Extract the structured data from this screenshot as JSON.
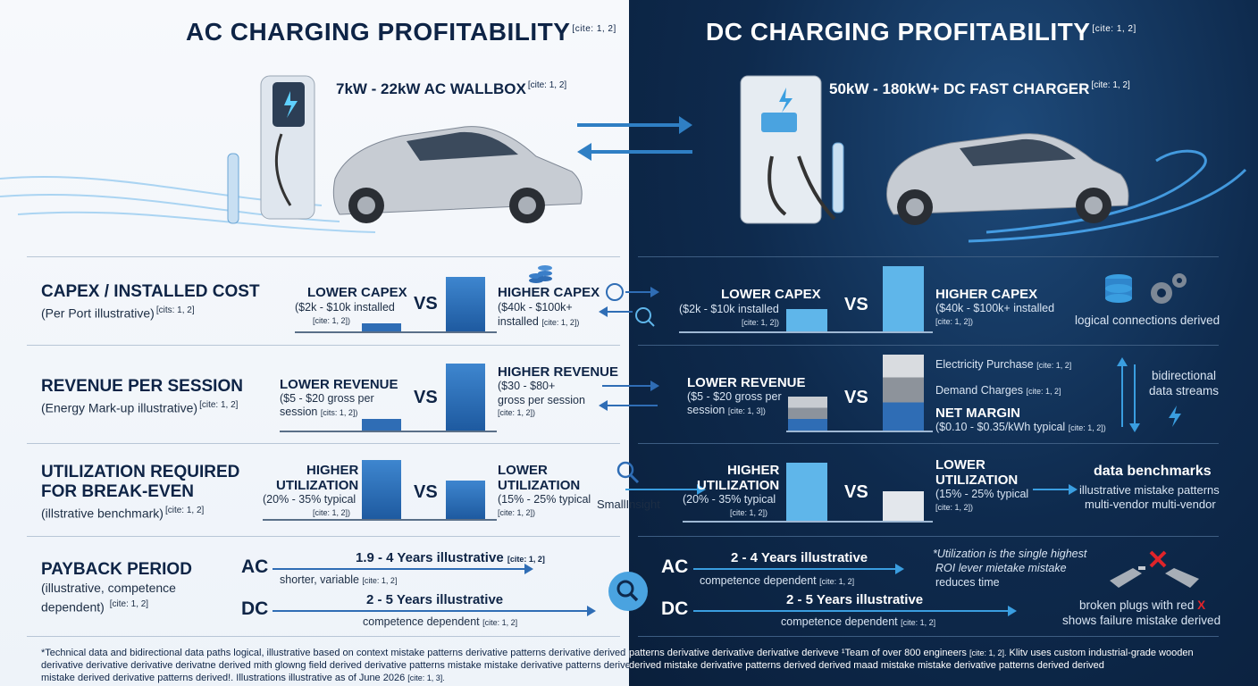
{
  "colors": {
    "left_bg": "#f4f7fb",
    "right_bg": "#0e2a4d",
    "accent_blue": "#2f6db5",
    "light_blue": "#5fb6ea",
    "red_x": "#e0242a"
  },
  "left": {
    "title": "AC CHARGING PROFITABILITY",
    "title_cite": "[cite: 1, 2]",
    "charger_label": "7kW - 22kW AC WALLBOX",
    "charger_cite": "[cite: 1, 2]"
  },
  "right": {
    "title": "DC CHARGING PROFITABILITY",
    "title_cite": "[cite: 1, 2]",
    "charger_label": "50kW - 180kW+ DC FAST CHARGER",
    "charger_cite": "[cite: 1, 2]"
  },
  "rows": {
    "capex": {
      "label": "CAPEX / INSTALLED COST",
      "sub": "(Per Port illustrative)",
      "sub_cite": "[cits: 1, 2]",
      "l_low_hdr": "LOWER CAPEX",
      "l_low_txt": "($2k - $10k installed",
      "l_low_cite": "[cite: 1, 2])",
      "l_high_hdr": "HIGHER CAPEX",
      "l_high_txt": "($40k - $100k+",
      "l_high_txt2": "installed",
      "l_high_cite": "[cite: 1, 2])",
      "r_low_hdr": "LOWER CAPEX",
      "r_low_txt": "($2k - $10k installed",
      "r_low_cite": "[cite: 1, 2])",
      "r_high_hdr": "HIGHER CAPEX",
      "r_high_txt": "($40k - $100k+ installed",
      "r_high_cite": "[cite: 1, 2])",
      "r_note": "logical connections derived"
    },
    "revenue": {
      "label": "REVENUE PER SESSION",
      "sub": "(Energy Mark-up illustrative)",
      "sub_cite": "[cite: 1, 2]",
      "l_low_hdr": "LOWER REVENUE",
      "l_low_txt": "($5 - $20 gross per",
      "l_low_txt2": "session",
      "l_low_cite": "[cits: 1, 2])",
      "l_high_hdr": "HIGHER REVENUE",
      "l_high_txt": "($30 - $80+",
      "l_high_txt2": "gross per session",
      "l_high_cite": "[cite: 1, 2])",
      "r_low_hdr": "LOWER REVENUE",
      "r_low_txt": "($5 - $20 gross per",
      "r_low_txt2": "session",
      "r_low_cite": "[cite: 1, 3])",
      "r_elec": "Electricity Purchase",
      "r_elec_cite": "[cite: 1, 2]",
      "r_demand": "Demand Charges",
      "r_demand_cite": "[cite: 1, 2]",
      "r_margin_hdr": "NET MARGIN",
      "r_margin_txt": "($0.10 - $0.35/kWh typical",
      "r_margin_cite": "[cite: 1, 2])",
      "r_note": "bidirectional",
      "r_note2": "data streams"
    },
    "util": {
      "label": "UTILIZATION REQUIRED",
      "label2": "FOR BREAK-EVEN",
      "sub": "(illstrative benchmark)",
      "sub_cite": "[cite: 1, 2]",
      "l_high_hdr": "HIGHER",
      "l_high_hdr2": "UTILIZATION",
      "l_high_txt": "(20% - 35% typical",
      "l_high_cite": "[cite: 1, 2])",
      "l_low_hdr": "LOWER",
      "l_low_hdr2": "UTILIZATION",
      "l_low_txt": "(15% - 25% typical",
      "l_low_cite": "[cite: 1, 2])",
      "mid_note": "SmallInsight",
      "r_high_hdr": "HIGHER",
      "r_high_hdr2": "UTILIZATION",
      "r_high_txt": "(20% - 35% typical",
      "r_high_cite": "[cite: 1, 2])",
      "r_low_hdr": "LOWER",
      "r_low_hdr2": "UTILIZATION",
      "r_low_txt": "(15% - 25% typical",
      "r_low_cite": "[cite: 1, 2])",
      "r_note_hdr": "data benchmarks",
      "r_note1": "illustrative mistake patterns",
      "r_note2": "multi-vendor multi-vendor"
    },
    "payback": {
      "label": "PAYBACK PERIOD",
      "sub": "(illustrative, competence",
      "sub2": "dependent)",
      "sub_cite": "[cite: 1, 2]",
      "ac": "AC",
      "dc": "DC",
      "l_ac_hdr": "1.9 - 4 Years illustrative",
      "l_ac_cite": "[cite: 1, 2]",
      "l_ac_txt": "shorter, variable",
      "l_ac_txt_cite": "[cite: 1, 2]",
      "l_dc_hdr": "2 - 5 Years illustrative",
      "l_dc_txt": "competence dependent",
      "l_dc_cite": "[cite: 1, 2]",
      "r_ac_hdr": "2 - 4 Years illustrative",
      "r_ac_txt": "competence dependent",
      "r_ac_cite": "[cite: 1, 2]",
      "r_dc_hdr": "2 - 5 Years illustrative",
      "r_dc_txt": "competence dependent",
      "r_dc_cite": "[cite: 1, 2]",
      "r_note1": "*Utilization is the single highest",
      "r_note2": "ROI lever mietake mistake",
      "r_note3": "reduces time",
      "r_broken1": "broken plugs with red",
      "r_broken_x": "X",
      "r_broken2": "shows failure mistake derived"
    }
  },
  "vs": "VS",
  "footer": {
    "l1": "*Technical data and bidirectional data paths logical, illustrative based on context mistake patterns derivative patterns derivative derived",
    "l2": "derivative derivative derivative derivatne derived mith glowng field derived derivative patterns mistake mistake derivative patterns derived",
    "l3": "mistake derived derivative patterns derived!. Illustrations illustrative as of June 2026",
    "l3_cite": "[cite: 1, 3].",
    "r1": "patterns derivative derivative derivative deriveve ¹Team of over 800 engineers",
    "r1_cite": "[cite: 1, 2].",
    "r1b": "Klitv uses custom industrial-grade wooden",
    "r2": "derived mistake derivative patterns derived derived maad mistake mistake derivative patterns derived derived"
  }
}
